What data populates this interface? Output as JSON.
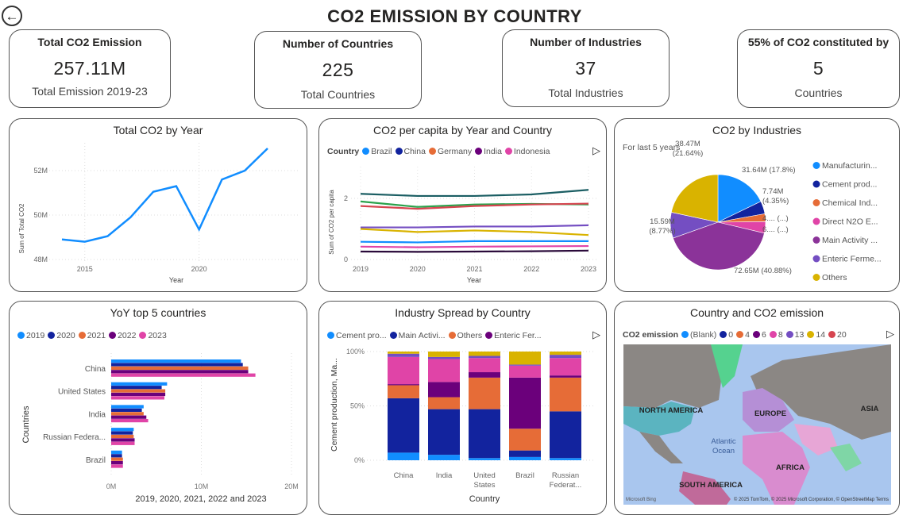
{
  "header": {
    "title": "CO2 EMISSION BY COUNTRY",
    "back_icon": "back-arrow-icon"
  },
  "kpis": [
    {
      "title": "Total CO2 Emission",
      "value": "257.11M",
      "subtitle": "Total Emission 2019-23"
    },
    {
      "title": "Number of Countries",
      "value": "225",
      "subtitle": "Total Countries"
    },
    {
      "title": "Number of Industries",
      "value": "37",
      "subtitle": "Total Industries"
    },
    {
      "title": "55% of CO2 constituted by",
      "value": "5",
      "subtitle": "Countries"
    }
  ],
  "chart_data": [
    {
      "id": "total_by_year",
      "type": "line",
      "title": "Total CO2 by Year",
      "xlabel": "Year",
      "ylabel": "Sum of Total CO2",
      "x": [
        2014,
        2015,
        2016,
        2017,
        2018,
        2019,
        2020,
        2021,
        2022,
        2023
      ],
      "values": [
        48.9,
        48.8,
        49.05,
        49.9,
        51.05,
        51.3,
        49.35,
        51.6,
        52.0,
        53.0
      ],
      "unit": "M",
      "ylim": [
        48,
        53
      ],
      "yticks": [
        "48M",
        "50M",
        "52M"
      ],
      "xticks": [
        "2015",
        "2020"
      ],
      "color": "#118DFF",
      "grid": true
    },
    {
      "id": "per_capita",
      "type": "line",
      "title": "CO2 per capita by Year and Country",
      "xlabel": "Year",
      "ylabel": "Sum of CO2 per capita",
      "legend_title": "Country",
      "legend": [
        {
          "name": "Brazil",
          "color": "#118DFF"
        },
        {
          "name": "China",
          "color": "#12239E"
        },
        {
          "name": "Germany",
          "color": "#E66C37"
        },
        {
          "name": "India",
          "color": "#6B007B"
        },
        {
          "name": "Indonesia",
          "color": "#E044A7"
        }
      ],
      "x": [
        2019,
        2020,
        2021,
        2022,
        2023
      ],
      "xticks": [
        "2019",
        "2020",
        "2021",
        "2022",
        "2023"
      ],
      "yticks": [
        "0",
        "2"
      ],
      "ylim": [
        0,
        3
      ],
      "series": [
        {
          "color": "#1B5E63",
          "values": [
            2.15,
            2.08,
            2.08,
            2.13,
            2.28
          ]
        },
        {
          "color": "#2BA24C",
          "values": [
            1.9,
            1.72,
            1.8,
            1.82,
            1.8
          ]
        },
        {
          "color": "#D64550",
          "values": [
            1.75,
            1.66,
            1.75,
            1.8,
            1.83
          ]
        },
        {
          "color": "#744EC2",
          "values": [
            1.05,
            1.05,
            1.08,
            1.08,
            1.12
          ]
        },
        {
          "color": "#D9B300",
          "values": [
            1.0,
            0.9,
            0.95,
            0.9,
            0.8
          ]
        },
        {
          "color": "#118DFF",
          "values": [
            0.58,
            0.56,
            0.6,
            0.6,
            0.6
          ]
        },
        {
          "color": "#E044A7",
          "values": [
            0.42,
            0.4,
            0.42,
            0.43,
            0.44
          ]
        },
        {
          "color": "#2A0A3A",
          "values": [
            0.26,
            0.25,
            0.26,
            0.27,
            0.29
          ]
        }
      ]
    },
    {
      "id": "by_industries",
      "type": "pie",
      "title": "CO2 by Industries",
      "subtitle": "For last 5 years",
      "slices": [
        {
          "name": "Manufacturin...",
          "value": 31.64,
          "label": "31.64M (17.8%)",
          "color": "#118DFF"
        },
        {
          "name": "Cement prod...",
          "value": 7.74,
          "label": "7.74M (4.35%)",
          "color": "#12239E"
        },
        {
          "name": "Chemical Ind...",
          "value": 4.7,
          "label": "4.... (...)",
          "color": "#E66C37"
        },
        {
          "name": "Direct N2O E...",
          "value": 6.9,
          "label": "6.... (...)",
          "color": "#E044A7"
        },
        {
          "name": "Main Activity ...",
          "value": 72.65,
          "label": "72.65M (40.88%)",
          "color": "#8B3399"
        },
        {
          "name": "Enteric Ferme...",
          "value": 15.59,
          "label": "15.59M (8.77%)",
          "color": "#744EC2"
        },
        {
          "name": "Others",
          "value": 38.47,
          "label": "38.47M (21.64%)",
          "color": "#D9B300"
        }
      ]
    },
    {
      "id": "yoy_top5",
      "type": "bar",
      "orientation": "horizontal",
      "title": "YoY top 5 countries",
      "xlabel": "2019, 2020, 2021, 2022 and 2023",
      "ylabel": "Countries",
      "categories": [
        "China",
        "United States",
        "India",
        "Russian Federa...",
        "Brazil"
      ],
      "xticks": [
        "0M",
        "10M",
        "20M"
      ],
      "xlim": [
        0,
        20
      ],
      "unit": "M",
      "series": [
        {
          "name": "2019",
          "color": "#118DFF",
          "values": [
            14.4,
            6.2,
            3.6,
            2.5,
            1.2
          ]
        },
        {
          "name": "2020",
          "color": "#12239E",
          "values": [
            14.6,
            5.6,
            3.4,
            2.4,
            1.2
          ]
        },
        {
          "name": "2021",
          "color": "#E66C37",
          "values": [
            15.2,
            6.0,
            3.6,
            2.5,
            1.3
          ]
        },
        {
          "name": "2022",
          "color": "#6B007B",
          "values": [
            15.2,
            6.0,
            3.9,
            2.6,
            1.3
          ]
        },
        {
          "name": "2023",
          "color": "#E044A7",
          "values": [
            16.0,
            5.9,
            4.1,
            2.6,
            1.3
          ]
        }
      ]
    },
    {
      "id": "industry_spread",
      "type": "bar",
      "stacked": "100%",
      "title": "Industry Spread by Country",
      "xlabel": "Country",
      "ylabel": "Cement production, Ma...",
      "categories": [
        "China",
        "India",
        "United States",
        "Brazil",
        "Russian Federat..."
      ],
      "yticks": [
        "0%",
        "50%",
        "100%"
      ],
      "legend": [
        {
          "name": "Cement pro...",
          "color": "#118DFF"
        },
        {
          "name": "Main Activi...",
          "color": "#12239E"
        },
        {
          "name": "Others",
          "color": "#E66C37"
        },
        {
          "name": "Enteric Fer...",
          "color": "#6B007B"
        }
      ],
      "series": [
        {
          "name": "Cement pro...",
          "color": "#118DFF",
          "values": [
            7,
            5,
            2,
            3,
            2
          ]
        },
        {
          "name": "Main Activi...",
          "color": "#12239E",
          "values": [
            50,
            42,
            45,
            6,
            43
          ]
        },
        {
          "name": "Others",
          "color": "#E66C37",
          "values": [
            12,
            11,
            29,
            20,
            31
          ]
        },
        {
          "name": "Enteric Fer...",
          "color": "#6B007B",
          "values": [
            1,
            14,
            5,
            47,
            2
          ]
        },
        {
          "color": "#E044A7",
          "values": [
            25,
            21,
            13,
            11,
            16
          ]
        },
        {
          "color": "#744EC2",
          "values": [
            3,
            2,
            2,
            1,
            3
          ]
        },
        {
          "color": "#D9B300",
          "values": [
            2,
            5,
            4,
            12,
            3
          ]
        }
      ]
    }
  ],
  "map": {
    "title": "Country and CO2 emission",
    "legend_title": "CO2 emission",
    "legend": [
      {
        "name": "(Blank)",
        "color": "#118DFF"
      },
      {
        "name": "0",
        "color": "#12239E"
      },
      {
        "name": "4",
        "color": "#E66C37"
      },
      {
        "name": "6",
        "color": "#6B007B"
      },
      {
        "name": "8",
        "color": "#E044A7"
      },
      {
        "name": "13",
        "color": "#744EC2"
      },
      {
        "name": "14",
        "color": "#D9B300"
      },
      {
        "name": "20",
        "color": "#D64550"
      }
    ],
    "labels": {
      "na": "NORTH AMERICA",
      "eu": "EUROPE",
      "asia": "ASIA",
      "africa": "AFRICA",
      "sa": "SOUTH AMERICA",
      "atlantic1": "Atlantic",
      "atlantic2": "Ocean"
    },
    "attribution": "© 2025 TomTom, © 2025 Microsoft Corporation, © OpenStreetMap Terms",
    "brand": "Microsoft Bing"
  }
}
